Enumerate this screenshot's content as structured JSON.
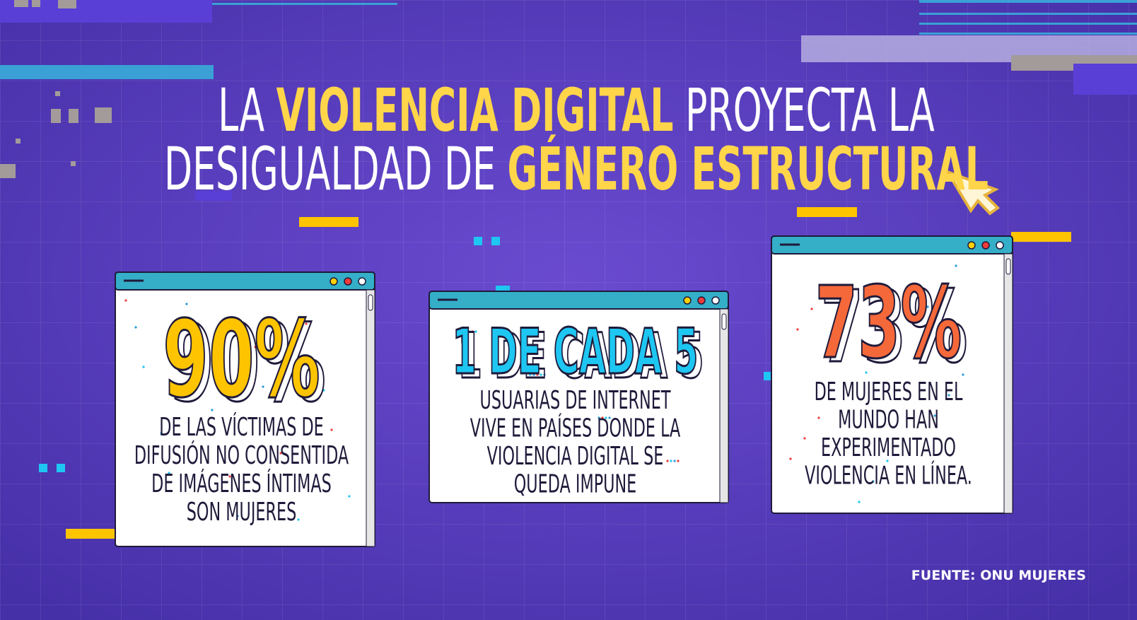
{
  "title": {
    "color": "#ffffff",
    "highlight_color": "#ffd54a",
    "lines": [
      [
        {
          "text": "LA ",
          "highlight": false
        },
        {
          "text": "VIOLENCIA DIGITAL",
          "highlight": true
        },
        {
          "text": " PROYECTA LA",
          "highlight": false
        }
      ],
      [
        {
          "text": "DESIGUALDAD DE ",
          "highlight": false
        },
        {
          "text": "GÉNERO ESTRUCTURAL",
          "highlight": true
        }
      ]
    ]
  },
  "cards": [
    {
      "figure": "90%",
      "color": "#ffc400",
      "lines": [
        "DE LAS VÍCTIMAS DE",
        "DIFUSIÓN NO CONSENTIDA",
        "DE IMÁGENES ÍNTIMAS",
        "SON MUJERES"
      ]
    },
    {
      "figure": "1 DE CADA 5",
      "color": "#1ec6f2",
      "lines": [
        "USUARIAS DE INTERNET",
        "VIVE EN PAÍSES DONDE LA",
        "VIOLENCIA DIGITAL SE",
        "QUEDA IMPUNE"
      ]
    },
    {
      "figure": "73%",
      "color": "#f5683a",
      "lines": [
        "DE MUJERES EN EL",
        "MUNDO HAN",
        "EXPERIMENTADO",
        "VIOLENCIA EN LÍNEA."
      ]
    }
  ],
  "source": "FUENTE: ONU MUJERES"
}
